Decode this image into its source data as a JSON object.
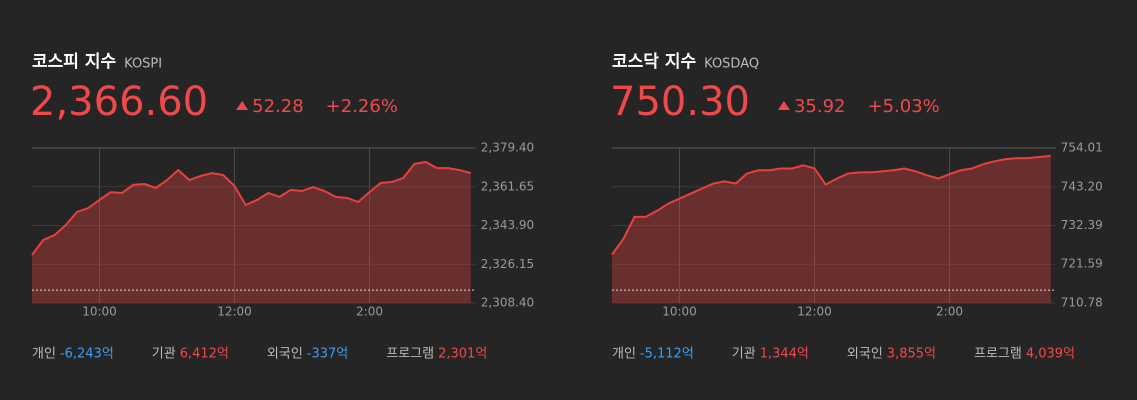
{
  "chart_data": [
    {
      "type": "area",
      "title": "코스피 지수",
      "subtitle": "KOSPI",
      "price": "2,366.60",
      "change": "52.28",
      "change_pct": "+2.26%",
      "color": "#e8403f",
      "grid": true,
      "reference_line": 2314.32,
      "categories": [
        null,
        null,
        null,
        null,
        null,
        null,
        "10:00",
        null,
        null,
        null,
        null,
        null,
        null,
        null,
        null,
        null,
        null,
        null,
        "12:00",
        null,
        null,
        null,
        null,
        null,
        null,
        null,
        null,
        null,
        null,
        null,
        "2:00",
        null,
        null,
        null,
        null,
        null,
        null,
        null,
        null,
        null
      ],
      "values": [
        2330.4,
        2337.3,
        2339.5,
        2344.1,
        2350.1,
        2351.9,
        2355.6,
        2359.2,
        2358.8,
        2362.5,
        2362.9,
        2361.1,
        2364.7,
        2369.3,
        2364.7,
        2366.6,
        2367.9,
        2367.0,
        2362.0,
        2353.3,
        2355.6,
        2358.8,
        2357.0,
        2360.2,
        2359.7,
        2361.5,
        2359.7,
        2357.0,
        2356.5,
        2354.7,
        2359.2,
        2363.4,
        2363.8,
        2365.7,
        2372.1,
        2373.0,
        2370.2,
        2370.2,
        2369.3,
        2367.9
      ],
      "ylim": [
        2308.4,
        2379.4
      ],
      "yticks": [
        {
          "value": 2379.4,
          "label": "2,379.40"
        },
        {
          "value": 2361.65,
          "label": "2,361.65"
        },
        {
          "value": 2343.9,
          "label": "2,343.90"
        },
        {
          "value": 2326.15,
          "label": "2,326.15"
        },
        {
          "value": 2308.4,
          "label": "2,308.40"
        }
      ],
      "investors": [
        {
          "name": "개인",
          "value": "-6,243억",
          "color": "#3d9df0"
        },
        {
          "name": "기관",
          "value": "6,412억",
          "color": "#f0494a"
        },
        {
          "name": "외국인",
          "value": "-337억",
          "color": "#3d9df0"
        },
        {
          "name": "프로그램",
          "value": "2,301억",
          "color": "#f0494a"
        }
      ]
    },
    {
      "type": "area",
      "title": "코스닥 지수",
      "subtitle": "KOSDAQ",
      "price": "750.30",
      "change": "35.92",
      "change_pct": "+5.03%",
      "color": "#e8403f",
      "grid": true,
      "reference_line": 714.38,
      "categories": [
        null,
        null,
        null,
        null,
        null,
        null,
        "10:00",
        null,
        null,
        null,
        null,
        null,
        null,
        null,
        null,
        null,
        null,
        null,
        "12:00",
        null,
        null,
        null,
        null,
        null,
        null,
        null,
        null,
        null,
        null,
        null,
        "2:00",
        null,
        null,
        null,
        null,
        null,
        null,
        null,
        null,
        null
      ],
      "values": [
        724.3,
        728.6,
        734.8,
        734.8,
        736.5,
        738.5,
        739.9,
        741.3,
        742.7,
        744.1,
        744.7,
        744.1,
        746.9,
        747.8,
        747.8,
        748.3,
        748.3,
        749.2,
        748.3,
        743.8,
        745.5,
        746.9,
        747.2,
        747.2,
        747.5,
        747.8,
        748.3,
        747.5,
        746.4,
        745.5,
        746.7,
        747.8,
        748.3,
        749.5,
        750.3,
        750.9,
        751.2,
        751.2,
        751.5,
        751.8
      ],
      "ylim": [
        710.78,
        754.01
      ],
      "yticks": [
        754.01,
        {
          "value": 743.2,
          "label": "743.20"
        },
        732.39,
        721.59,
        710.78
      ],
      "investors": [
        {
          "name": "개인",
          "value": "-5,112억",
          "color": "#3d9df0"
        },
        {
          "name": "기관",
          "value": "1,344억",
          "color": "#f0494a"
        },
        {
          "name": "외국인",
          "value": "3,855억",
          "color": "#f0494a"
        },
        {
          "name": "프로그램",
          "value": "4,039억",
          "color": "#f0494a"
        }
      ]
    }
  ]
}
